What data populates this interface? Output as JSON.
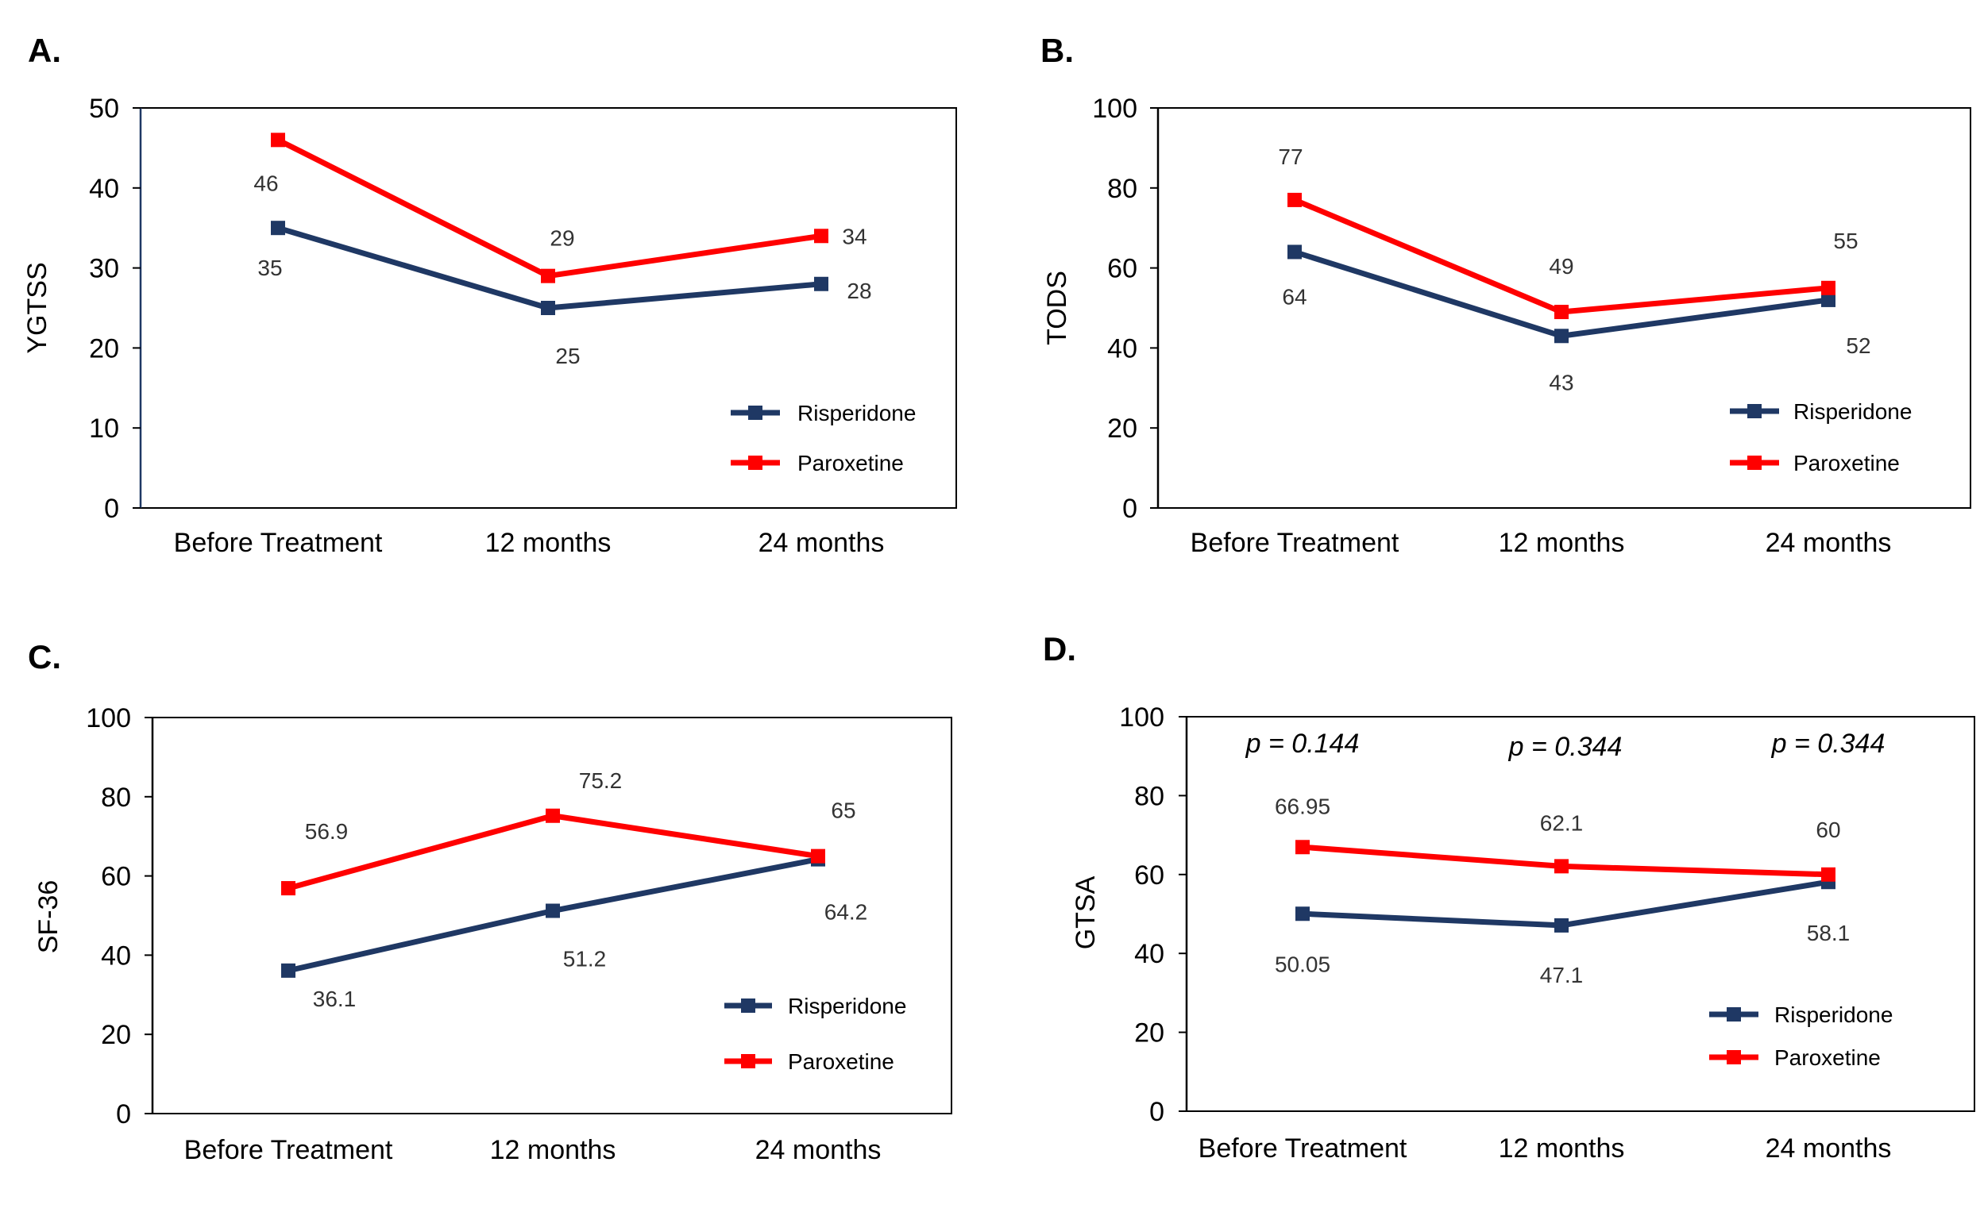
{
  "colors": {
    "risperidone": "#1f3864",
    "paroxetine": "#ff0000",
    "axis": "#000000",
    "plot_border": "#000000",
    "left_axis_A": "#1f3864",
    "data_label": "#333333"
  },
  "chart_data": [
    {
      "panel": "A.",
      "type": "line",
      "title": "",
      "xlabel": "",
      "ylabel": "YGTSS",
      "categories": [
        "Before Treatment",
        "12 months",
        "24 months"
      ],
      "ylim": [
        0,
        50
      ],
      "yticks": [
        "0",
        "10",
        "20",
        "30",
        "40",
        "50"
      ],
      "grid": false,
      "legend_position": "bottom-right",
      "series": [
        {
          "name": "Risperidone",
          "values": [
            35,
            25,
            28
          ],
          "labels": [
            "35",
            "25",
            "28"
          ]
        },
        {
          "name": "Paroxetine",
          "values": [
            46,
            29,
            34
          ],
          "labels": [
            "46",
            "29",
            "34"
          ]
        }
      ]
    },
    {
      "panel": "B.",
      "type": "line",
      "title": "",
      "xlabel": "",
      "ylabel": "TODS",
      "categories": [
        "Before Treatment",
        "12 months",
        "24 months"
      ],
      "ylim": [
        0,
        100
      ],
      "yticks": [
        "0",
        "20",
        "40",
        "60",
        "80",
        "100"
      ],
      "grid": false,
      "legend_position": "bottom-right",
      "series": [
        {
          "name": "Risperidone",
          "values": [
            64,
            43,
            52
          ],
          "labels": [
            "64",
            "43",
            "52"
          ]
        },
        {
          "name": "Paroxetine",
          "values": [
            77,
            49,
            55
          ],
          "labels": [
            "77",
            "49",
            "55"
          ]
        }
      ]
    },
    {
      "panel": "C.",
      "type": "line",
      "title": "",
      "xlabel": "",
      "ylabel": "SF-36",
      "categories": [
        "Before Treatment",
        "12 months",
        "24 months"
      ],
      "ylim": [
        0,
        100
      ],
      "yticks": [
        "0",
        "20",
        "40",
        "60",
        "80",
        "100"
      ],
      "grid": false,
      "legend_position": "bottom-right",
      "series": [
        {
          "name": "Risperidone",
          "values": [
            36.1,
            51.2,
            64.2
          ],
          "labels": [
            "36.1",
            "51.2",
            "64.2"
          ]
        },
        {
          "name": "Paroxetine",
          "values": [
            56.9,
            75.2,
            65
          ],
          "labels": [
            "56.9",
            "75.2",
            "65"
          ]
        }
      ]
    },
    {
      "panel": "D.",
      "type": "line",
      "title": "",
      "xlabel": "",
      "ylabel": "GTSA",
      "categories": [
        "Before Treatment",
        "12 months",
        "24 months"
      ],
      "ylim": [
        0,
        100
      ],
      "yticks": [
        "0",
        "20",
        "40",
        "60",
        "80",
        "100"
      ],
      "grid": false,
      "legend_position": "bottom-right",
      "annotations": [
        "p = 0.144",
        "p = 0.344",
        "p = 0.344"
      ],
      "series": [
        {
          "name": "Risperidone",
          "values": [
            50.05,
            47.1,
            58.1
          ],
          "labels": [
            "50.05",
            "47.1",
            "58.1"
          ]
        },
        {
          "name": "Paroxetine",
          "values": [
            66.95,
            62.1,
            60
          ],
          "labels": [
            "66.95",
            "62.1",
            "60"
          ]
        }
      ]
    }
  ]
}
